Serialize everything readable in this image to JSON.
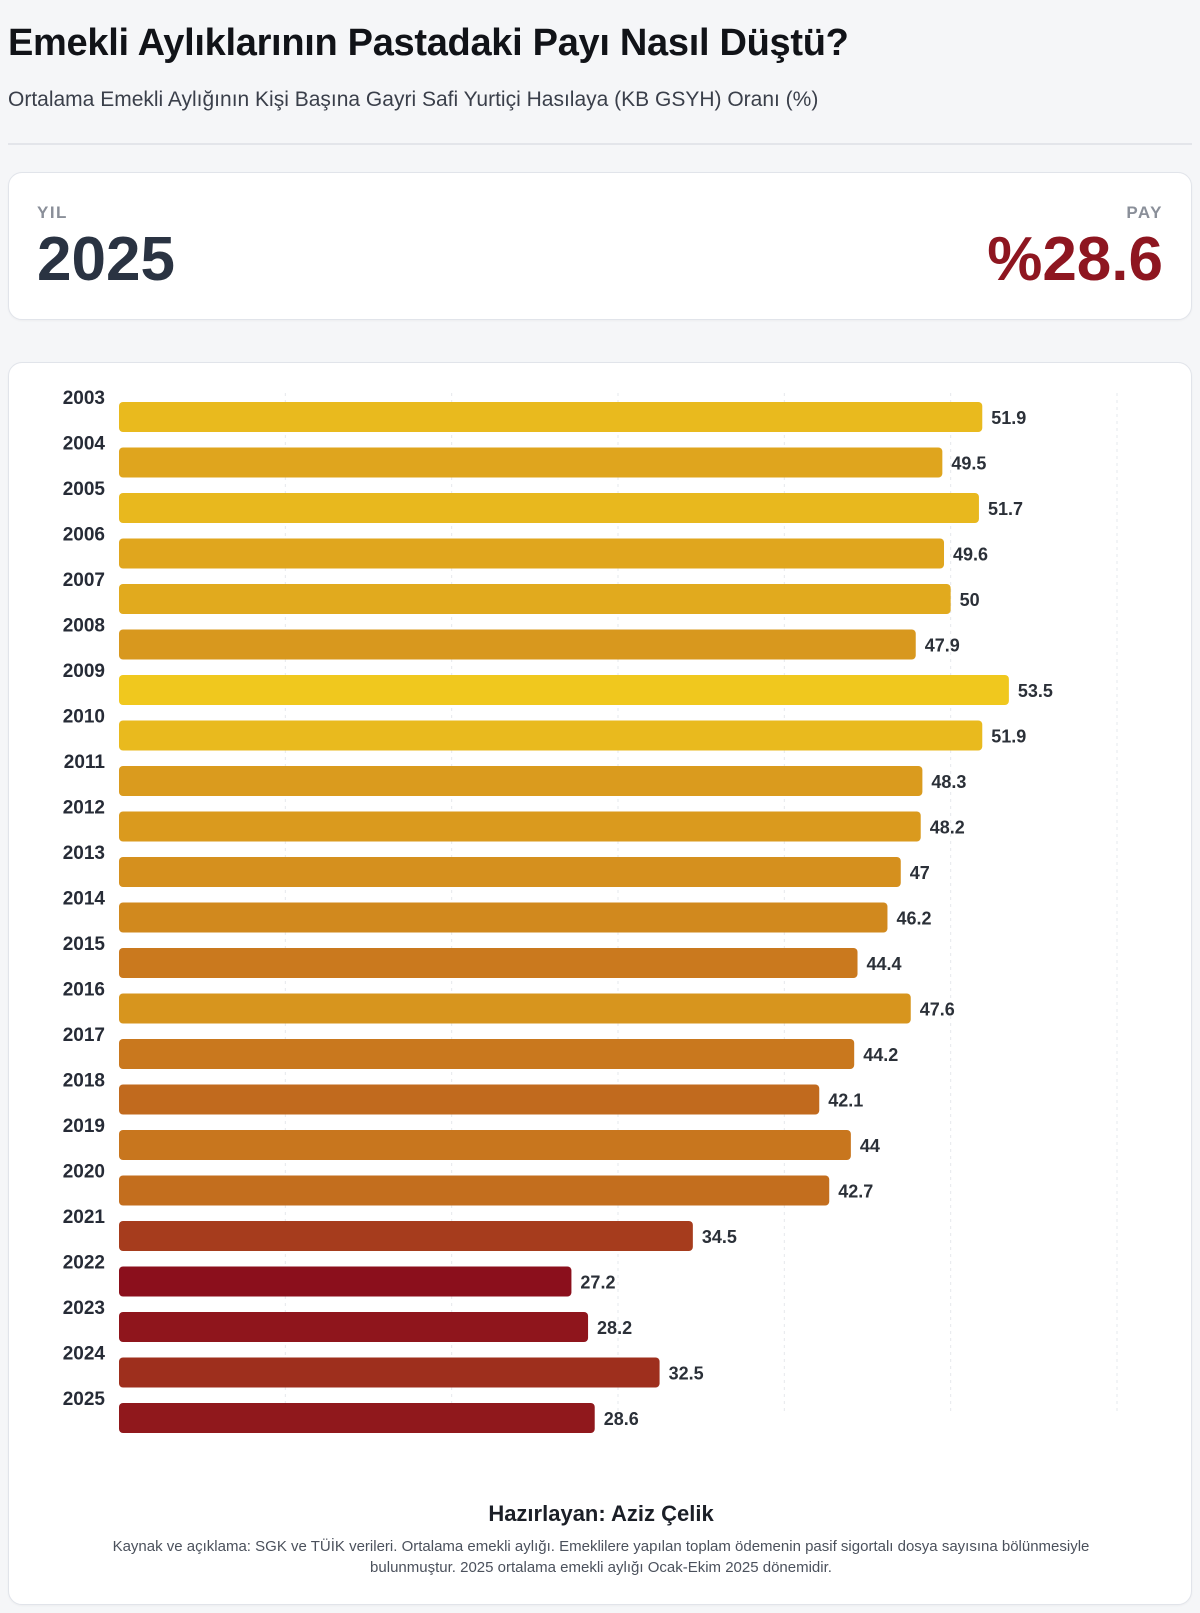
{
  "header": {
    "title": "Emekli Aylıklarının Pastadaki Payı Nasıl Düştü?",
    "subtitle": "Ortalama Emekli Aylığının Kişi Başına Gayri Safi Yurtiçi Hasılaya (KB GSYH) Oranı (%)"
  },
  "kpi": {
    "year_label": "YIL",
    "year_value": "2025",
    "share_label": "PAY",
    "share_value": "%28.6"
  },
  "chart_data": {
    "type": "bar",
    "orientation": "horizontal",
    "categories": [
      "2003",
      "2004",
      "2005",
      "2006",
      "2007",
      "2008",
      "2009",
      "2010",
      "2011",
      "2012",
      "2013",
      "2014",
      "2015",
      "2016",
      "2017",
      "2018",
      "2019",
      "2020",
      "2021",
      "2022",
      "2023",
      "2024",
      "2025"
    ],
    "values": [
      51.9,
      49.5,
      51.7,
      49.6,
      50,
      47.9,
      53.5,
      51.9,
      48.3,
      48.2,
      47,
      46.2,
      44.4,
      47.6,
      44.2,
      42.1,
      44,
      42.7,
      34.5,
      27.2,
      28.2,
      32.5,
      28.6
    ],
    "xlim": [
      0,
      60
    ],
    "grid": true,
    "color_scale": {
      "low": "#8b0f1c",
      "mid": "#c8761e",
      "high": "#f0c81e"
    }
  },
  "footer": {
    "credit": "Hazırlayan: Aziz Çelik",
    "note": "Kaynak ve açıklama: SGK ve TÜİK verileri. Ortalama emekli aylığı. Emeklilere yapılan toplam ödemenin pasif sigortalı dosya sayısına bölünmesiyle bulunmuştur. 2025 ortalama emekli aylığı Ocak-Ekim 2025 dönemidir."
  }
}
